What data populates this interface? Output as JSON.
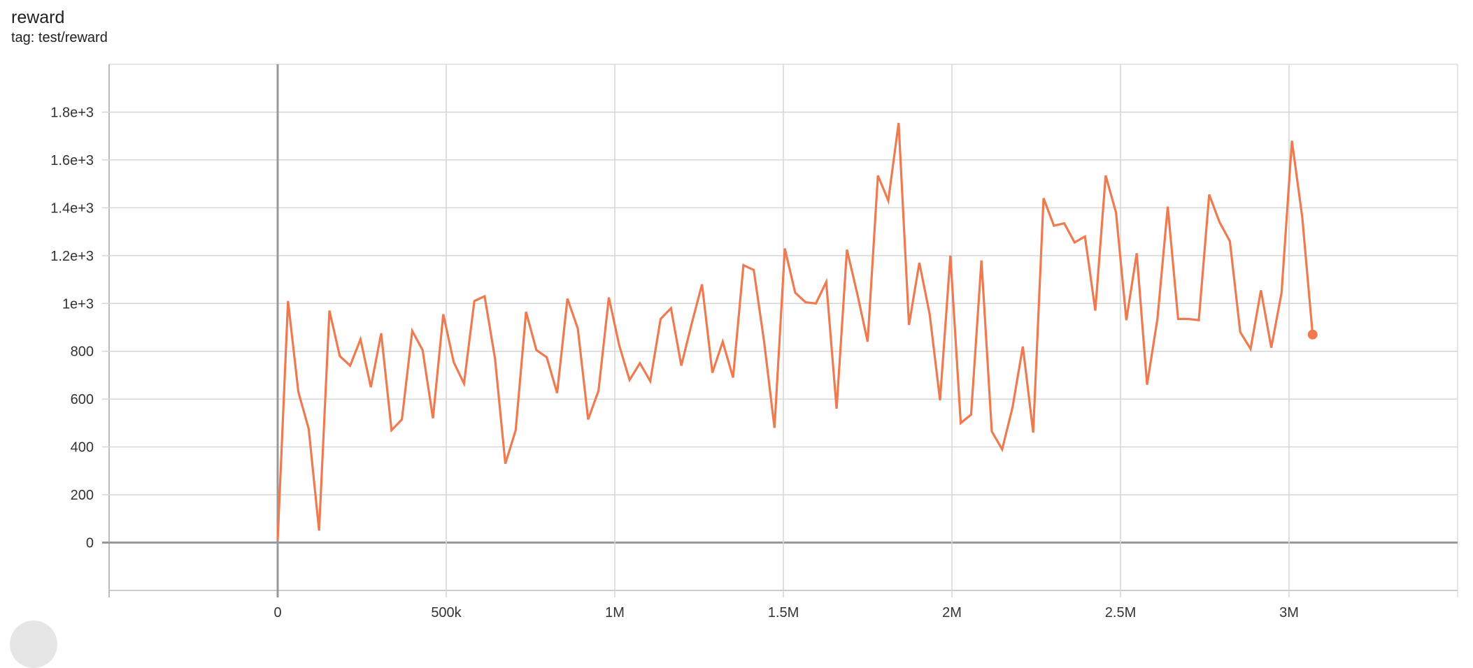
{
  "card": {
    "title": "reward",
    "subtitle": "tag: test/reward"
  },
  "chart_data": {
    "type": "line",
    "title": "reward",
    "xlabel": "",
    "ylabel": "",
    "xlim": [
      -500000,
      3500000
    ],
    "ylim": [
      -200,
      2000
    ],
    "grid": true,
    "x_ticks": [
      0,
      500000,
      1000000,
      1500000,
      2000000,
      2500000,
      3000000
    ],
    "x_tick_labels": [
      "0",
      "500k",
      "1M",
      "1.5M",
      "2M",
      "2.5M",
      "3M"
    ],
    "y_ticks": [
      0,
      200,
      400,
      600,
      800,
      1000,
      1200,
      1400,
      1600,
      1800
    ],
    "y_tick_labels": [
      "0",
      "200",
      "400",
      "600",
      "800",
      "1e+3",
      "1.2e+3",
      "1.4e+3",
      "1.6e+3",
      "1.8e+3"
    ],
    "series": [
      {
        "color": "#ef7a4f",
        "x": [
          0,
          30700,
          61400,
          92100,
          122800,
          153500,
          184200,
          214900,
          245600,
          276300,
          307000,
          337700,
          368400,
          399100,
          429800,
          460500,
          491200,
          521900,
          552600,
          583300,
          614000,
          644700,
          675400,
          706100,
          736800,
          767500,
          798200,
          828900,
          859600,
          890300,
          921000,
          951700,
          982400,
          1013100,
          1043800,
          1074500,
          1105200,
          1135900,
          1166600,
          1197300,
          1228000,
          1258700,
          1289400,
          1320100,
          1350800,
          1381500,
          1412200,
          1442900,
          1473600,
          1504300,
          1535000,
          1565700,
          1596400,
          1627100,
          1657800,
          1688500,
          1719200,
          1749900,
          1780600,
          1811300,
          1842000,
          1872700,
          1903400,
          1934100,
          1964800,
          1995500,
          2026200,
          2056900,
          2087600,
          2118300,
          2149000,
          2179700,
          2210400,
          2241100,
          2271800,
          2302500,
          2333200,
          2363900,
          2394600,
          2425300,
          2456000,
          2486700,
          2517400,
          2548100,
          2578800,
          2609500,
          2640200,
          2670900,
          2701600,
          2732300,
          2763000,
          2793700,
          2824400,
          2855100,
          2885800,
          2916500,
          2947200,
          2977900,
          3008600,
          3039300,
          3070000
        ],
        "y": [
          10,
          1010,
          630,
          475,
          50,
          970,
          780,
          740,
          850,
          650,
          875,
          470,
          515,
          885,
          805,
          520,
          955,
          755,
          665,
          1010,
          1030,
          770,
          330,
          470,
          965,
          805,
          775,
          625,
          1020,
          895,
          515,
          635,
          1025,
          825,
          680,
          750,
          675,
          935,
          980,
          740,
          915,
          1080,
          710,
          840,
          690,
          1160,
          1140,
          840,
          480,
          1230,
          1045,
          1005,
          1000,
          1090,
          560,
          1225,
          1040,
          840,
          1535,
          1430,
          1755,
          910,
          1170,
          955,
          595,
          1200,
          500,
          535,
          1180,
          465,
          390,
          565,
          820,
          460,
          1440,
          1325,
          1335,
          1255,
          1280,
          970,
          1535,
          1380,
          930,
          1210,
          660,
          935,
          1405,
          935,
          935,
          930,
          1455,
          1340,
          1260,
          880,
          810,
          1055,
          815,
          1045,
          1680,
          1360,
          870
        ]
      }
    ]
  }
}
